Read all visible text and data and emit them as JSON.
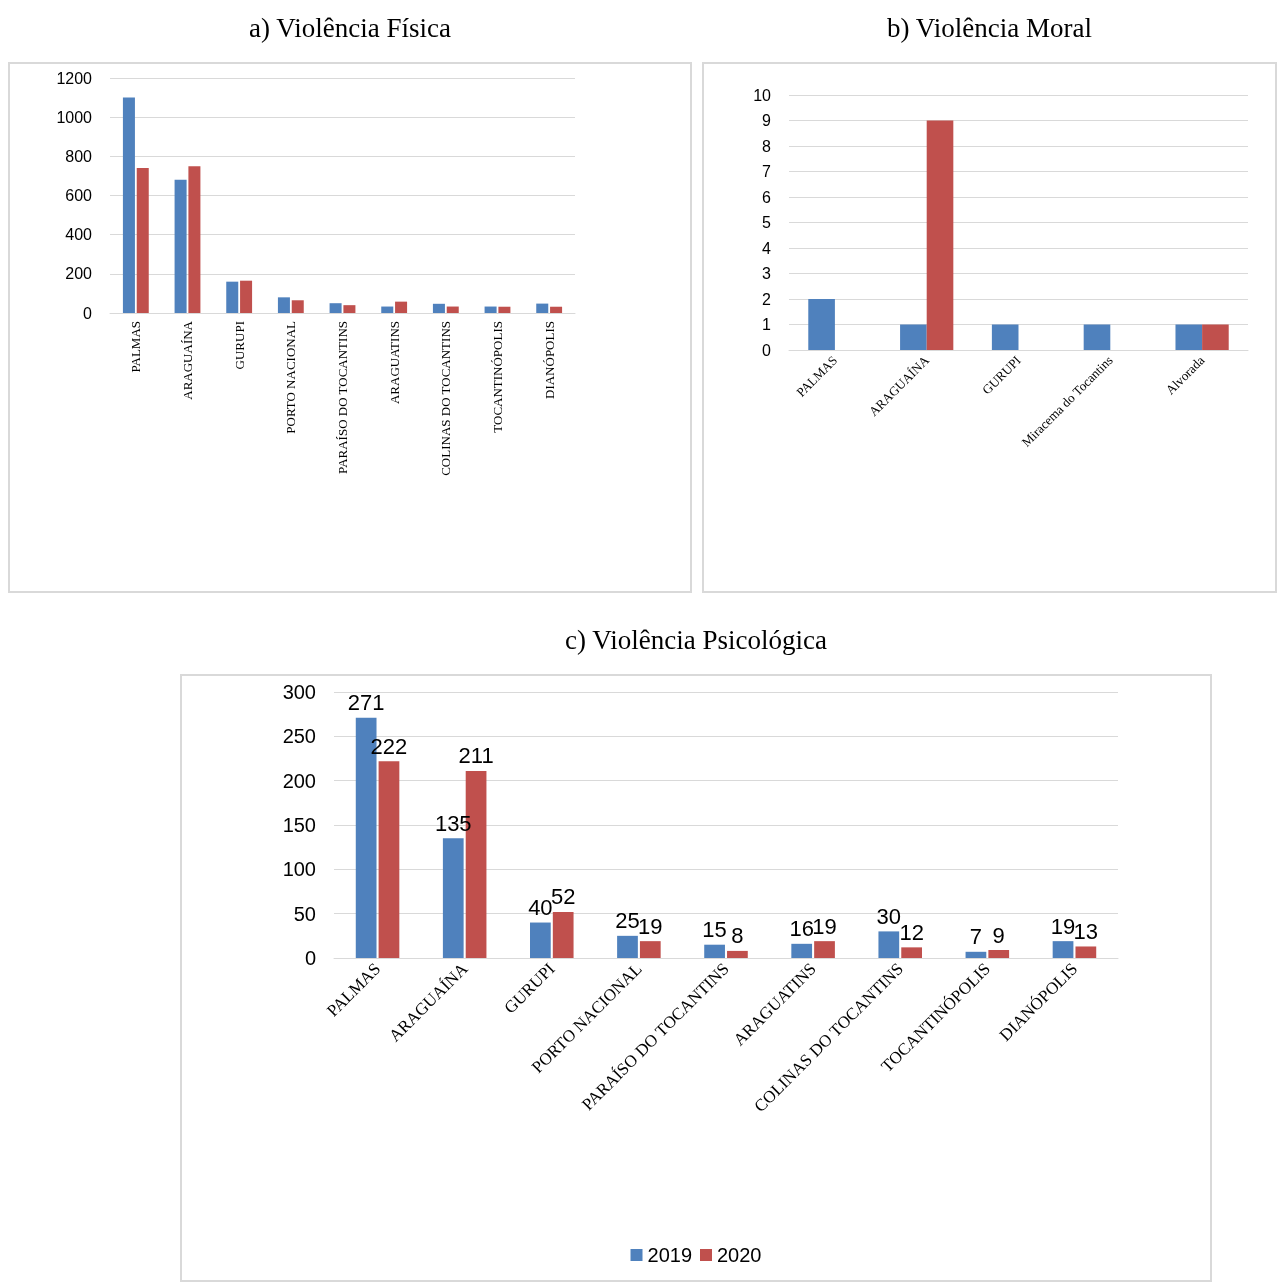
{
  "chart_data": [
    {
      "type": "bar",
      "title": "a) Violência Física",
      "categories": [
        "PALMAS",
        "ARAGUAÍNA",
        "GURUPI",
        "PORTO NACIONAL",
        "PARAÍSO DO TOCANTINS",
        "ARAGUATINS",
        "COLINAS DO TOCANTINS",
        "TOCANTINÓPOLIS",
        "DIANÓPOLIS"
      ],
      "series": [
        {
          "color": "#4f81bd",
          "values": [
            1100,
            680,
            160,
            80,
            50,
            33,
            47,
            33,
            48
          ]
        },
        {
          "color": "#c0504d",
          "values": [
            740,
            750,
            165,
            65,
            40,
            58,
            33,
            32,
            32
          ]
        }
      ],
      "ylim": [
        0,
        1200
      ],
      "yticks": [
        0,
        200,
        400,
        600,
        800,
        1000,
        1200
      ],
      "grid": "y"
    },
    {
      "type": "bar",
      "title": "b) Violência Moral",
      "categories": [
        "PALMAS",
        "ARAGUAÍNA",
        "GURUPI",
        "Miracema do Tocantins",
        "Alvorada"
      ],
      "series": [
        {
          "color": "#4f81bd",
          "values": [
            2,
            1,
            1,
            1,
            1
          ]
        },
        {
          "color": "#c0504d",
          "values": [
            0,
            9,
            0,
            0,
            1
          ]
        }
      ],
      "ylim": [
        0,
        10
      ],
      "yticks": [
        0,
        1,
        2,
        3,
        4,
        5,
        6,
        7,
        8,
        9,
        10
      ],
      "grid": "y"
    },
    {
      "type": "bar",
      "title": "c) Violência Psicológica",
      "categories": [
        "PALMAS",
        "ARAGUAÍNA",
        "GURUPI",
        "PORTO NACIONAL",
        "PARAÍSO DO TOCANTINS",
        "ARAGUATINS",
        "COLINAS DO TOCANTINS",
        "TOCANTINÓPOLIS",
        "DIANÓPOLIS"
      ],
      "series": [
        {
          "name": "2019",
          "color": "#4f81bd",
          "values": [
            271,
            135,
            40,
            25,
            15,
            16,
            30,
            7,
            19
          ]
        },
        {
          "name": "2020",
          "color": "#c0504d",
          "values": [
            222,
            211,
            52,
            19,
            8,
            19,
            12,
            9,
            13
          ]
        }
      ],
      "ylim": [
        0,
        300
      ],
      "yticks": [
        0,
        50,
        100,
        150,
        200,
        250,
        300
      ],
      "grid": "y",
      "data_labels": true,
      "legend": "bottom"
    }
  ]
}
